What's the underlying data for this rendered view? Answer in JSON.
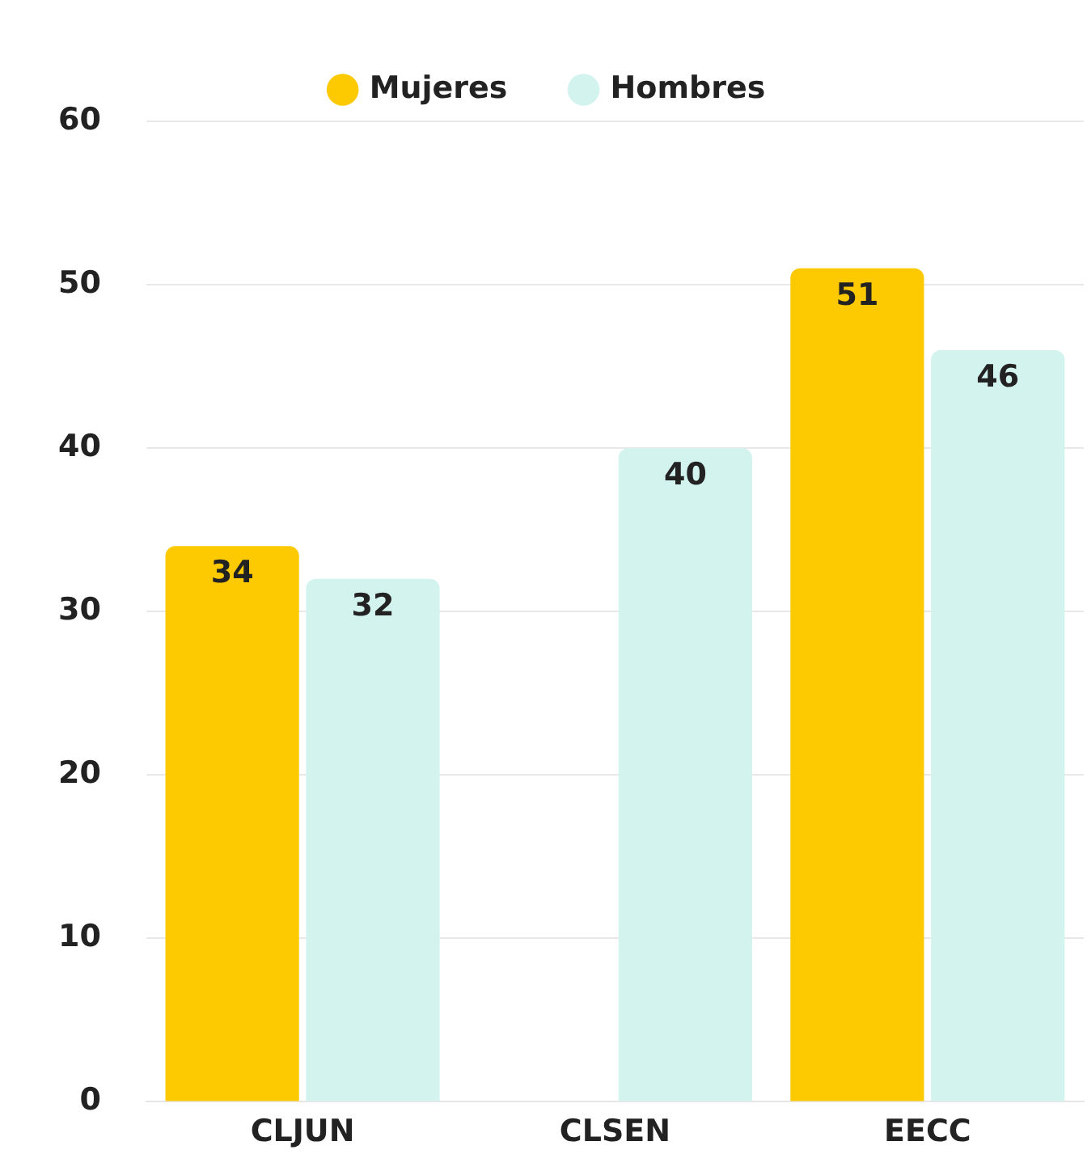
{
  "chart_data": {
    "type": "bar",
    "categories": [
      "CLJUN",
      "CLSEN",
      "EECC"
    ],
    "series": [
      {
        "name": "Mujeres",
        "color": "#fdc900",
        "values": [
          34,
          null,
          51
        ]
      },
      {
        "name": "Hombres",
        "color": "#d3f3ee",
        "values": [
          32,
          40,
          46
        ]
      }
    ],
    "ylim": [
      0,
      60
    ],
    "yticks": [
      0,
      10,
      20,
      30,
      40,
      50,
      60
    ],
    "grid": "y",
    "legend": "top",
    "data_labels": true
  }
}
